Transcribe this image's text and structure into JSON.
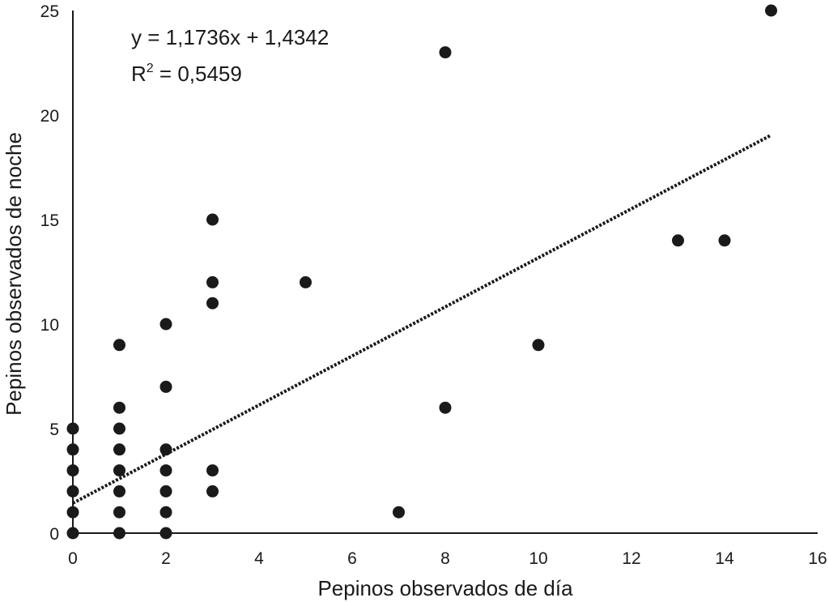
{
  "chart_data": {
    "type": "scatter",
    "xlabel": "Pepinos observados de día",
    "ylabel": "Pepinos observados de noche",
    "xlim": [
      0,
      16
    ],
    "ylim": [
      0,
      25
    ],
    "x_ticks": [
      0,
      2,
      4,
      6,
      8,
      10,
      12,
      14,
      16
    ],
    "y_ticks": [
      0,
      5,
      10,
      15,
      20,
      25
    ],
    "grid": false,
    "series": [
      {
        "marker": "circle",
        "color": "#1a1a1a",
        "points": [
          [
            0,
            0
          ],
          [
            0,
            1
          ],
          [
            0,
            2
          ],
          [
            0,
            3
          ],
          [
            0,
            4
          ],
          [
            0,
            5
          ],
          [
            1,
            0
          ],
          [
            1,
            1
          ],
          [
            1,
            2
          ],
          [
            1,
            3
          ],
          [
            1,
            4
          ],
          [
            1,
            5
          ],
          [
            1,
            6
          ],
          [
            1,
            9
          ],
          [
            2,
            0
          ],
          [
            2,
            1
          ],
          [
            2,
            2
          ],
          [
            2,
            3
          ],
          [
            2,
            4
          ],
          [
            2,
            7
          ],
          [
            2,
            10
          ],
          [
            3,
            2
          ],
          [
            3,
            3
          ],
          [
            3,
            11
          ],
          [
            3,
            12
          ],
          [
            3,
            15
          ],
          [
            5,
            12
          ],
          [
            7,
            1
          ],
          [
            8,
            6
          ],
          [
            8,
            23
          ],
          [
            10,
            9
          ],
          [
            13,
            14
          ],
          [
            14,
            14
          ],
          [
            15,
            25
          ]
        ]
      }
    ],
    "trendline": {
      "type": "linear",
      "style": "dotted",
      "slope": 1.1736,
      "intercept": 1.4342,
      "x_range": [
        0,
        15
      ]
    },
    "annotations": {
      "equation": "y = 1,1736x + 1,4342",
      "r2_prefix": "R",
      "r2_sup": "2",
      "r2_value": " = 0,5459"
    }
  }
}
